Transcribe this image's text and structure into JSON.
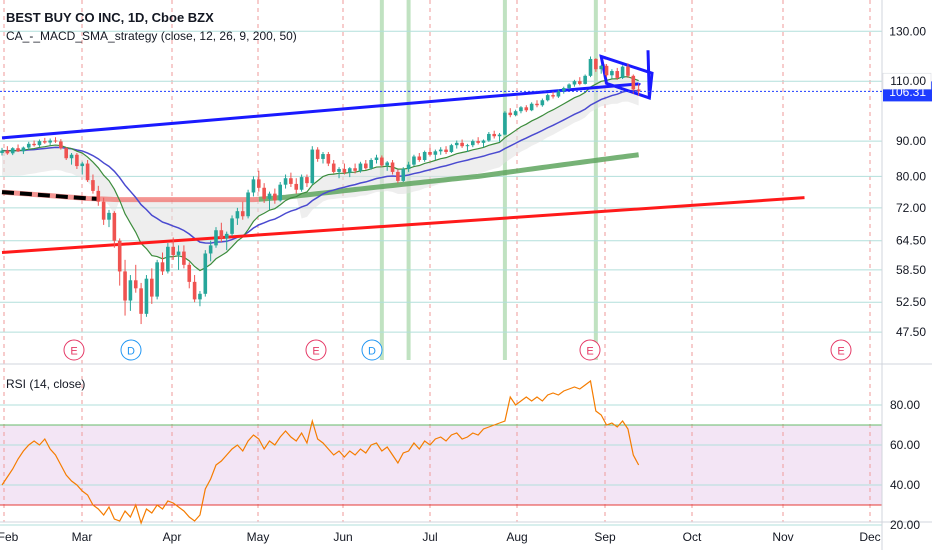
{
  "header": {
    "title": "BEST BUY CO INC, 1D, Cboe BZX",
    "indicator": "CA_-_MACD_SMA_strategy (close, 12, 26, 9, 200, 50)"
  },
  "rsi_header": "RSI (14, close)",
  "colors": {
    "candle_up": "#26a69a",
    "candle_down": "#ef5350",
    "trendline_blue": "#1a1aff",
    "trendline_red": "#ff1a1a",
    "sma200": "#f0716e",
    "sma50_thick": "#5ea55e",
    "ema_fast": "#3c8c3c",
    "ema_blue": "#4a4ad0",
    "rsi_line": "#f57c00",
    "rsi_band": "#f3e5f5",
    "signal_green": "#a5d6a7",
    "event_red": "#e53966",
    "event_blue": "#2196f3",
    "price_badge": "#1e3cff"
  },
  "chart_data": [
    {
      "type": "candlestick",
      "title": "BEST BUY CO INC, 1D, Cboe BZX",
      "price_axis": {
        "ticks": [
          "130.00",
          "110.00",
          "90.00",
          "80.00",
          "72.00",
          "64.50",
          "58.50",
          "52.50",
          "47.50"
        ],
        "scale": "log",
        "ylim": [
          44,
          135
        ]
      },
      "time_axis": {
        "ticks": [
          "Feb",
          "Mar",
          "Apr",
          "May",
          "Jun",
          "Jul",
          "Aug",
          "Sep",
          "Oct",
          "Nov",
          "Dec"
        ]
      },
      "last_price": "106.31",
      "event_markers": [
        "E",
        "D",
        "E",
        "D",
        "E",
        "E"
      ],
      "ohlc": [
        [
          86.5,
          88,
          85.8,
          87.2
        ],
        [
          87.2,
          88.5,
          86,
          86.4
        ],
        [
          86.4,
          88.2,
          85.9,
          87.9
        ],
        [
          87.9,
          89,
          86.8,
          87
        ],
        [
          87,
          88.4,
          86.2,
          88.1
        ],
        [
          88.1,
          89.8,
          87.5,
          89.2
        ],
        [
          89.2,
          90.2,
          88.4,
          88.8
        ],
        [
          88.8,
          90.5,
          88.3,
          90
        ],
        [
          90,
          91,
          89.2,
          89.6
        ],
        [
          89.6,
          90.8,
          88.8,
          90.2
        ],
        [
          90.2,
          91.2,
          89.5,
          89.9
        ],
        [
          89.9,
          90.6,
          87.5,
          87.9
        ],
        [
          87.9,
          88.2,
          84.5,
          85
        ],
        [
          85,
          86.5,
          83.2,
          86
        ],
        [
          86,
          86.5,
          82,
          82.8
        ],
        [
          82.8,
          84,
          80.5,
          83.5
        ],
        [
          83.5,
          84.5,
          78.5,
          79
        ],
        [
          79,
          80.5,
          75.5,
          76.2
        ],
        [
          76.2,
          77.5,
          72.5,
          73.5
        ],
        [
          73.5,
          74.5,
          68,
          69.2
        ],
        [
          69.2,
          71.5,
          67.5,
          70.8
        ],
        [
          70.8,
          71.2,
          63,
          64.5
        ],
        [
          64.5,
          65,
          55.5,
          58.2
        ],
        [
          58.2,
          60.5,
          50.2,
          52.8
        ],
        [
          52.8,
          57.5,
          51,
          56.5
        ],
        [
          56.5,
          59.5,
          54.2,
          55
        ],
        [
          55,
          56,
          48.8,
          50.5
        ],
        [
          50.5,
          57.5,
          50,
          56.8
        ],
        [
          56.8,
          58.8,
          52.2,
          53.5
        ],
        [
          53.5,
          60.5,
          53,
          60
        ],
        [
          60,
          62,
          57.5,
          58.2
        ],
        [
          58.2,
          64,
          57.8,
          63.2
        ],
        [
          63.2,
          65.2,
          60.5,
          61.5
        ],
        [
          61.5,
          63.5,
          58.5,
          62.2
        ],
        [
          62.2,
          63.5,
          58.8,
          59.5
        ],
        [
          59.5,
          60,
          55,
          56.2
        ],
        [
          56.2,
          57.5,
          52.5,
          53
        ],
        [
          53,
          54.5,
          51.8,
          54
        ],
        [
          54,
          62.5,
          53.5,
          61.8
        ],
        [
          61.8,
          64.5,
          60.2,
          63.5
        ],
        [
          63.5,
          67.5,
          63,
          66.8
        ],
        [
          66.8,
          68.5,
          64.2,
          65
        ],
        [
          65,
          66.5,
          62.5,
          66
        ],
        [
          66,
          70.2,
          65.5,
          69.5
        ],
        [
          69.5,
          72,
          68,
          71.2
        ],
        [
          71.2,
          73.5,
          69.2,
          70
        ],
        [
          70,
          76.5,
          69.5,
          75.8
        ],
        [
          75.8,
          80,
          74.8,
          79.2
        ],
        [
          79.2,
          81.5,
          76,
          77
        ],
        [
          77,
          78.2,
          73.2,
          74.2
        ],
        [
          74.2,
          76,
          71.5,
          75.5
        ],
        [
          75.5,
          76.8,
          73,
          73.8
        ],
        [
          73.8,
          78.5,
          73.5,
          77.8
        ],
        [
          77.8,
          80.5,
          76.8,
          79.5
        ],
        [
          79.5,
          81,
          77.2,
          78
        ],
        [
          78,
          79.5,
          75.5,
          76.5
        ],
        [
          76.5,
          80.5,
          76,
          79.8
        ],
        [
          79.8,
          80.5,
          77.2,
          78.2
        ],
        [
          78.2,
          88.5,
          77.8,
          87.5
        ],
        [
          87.5,
          88.2,
          84,
          84.8
        ],
        [
          84.8,
          86.8,
          83.5,
          86.2
        ],
        [
          86.2,
          86.8,
          82.8,
          83.5
        ],
        [
          83.5,
          84.5,
          80.8,
          81.2
        ],
        [
          81.2,
          82.5,
          79.5,
          82
        ],
        [
          82,
          83.5,
          80.5,
          81
        ],
        [
          81,
          82.5,
          79.8,
          82.2
        ],
        [
          82.2,
          83.5,
          80.8,
          81.5
        ],
        [
          81.5,
          84,
          81,
          83.5
        ],
        [
          83.5,
          84.5,
          81.8,
          82.2
        ],
        [
          82.2,
          85,
          81.8,
          84.5
        ],
        [
          84.5,
          86,
          83.5,
          85.2
        ],
        [
          85.2,
          85.8,
          82.5,
          83
        ],
        [
          83,
          84.2,
          81.5,
          83.8
        ],
        [
          83.8,
          84.5,
          80.5,
          81.2
        ],
        [
          81.2,
          81.8,
          78.2,
          78.8
        ],
        [
          78.8,
          82.5,
          78.5,
          82
        ],
        [
          82,
          84,
          81.2,
          83.2
        ],
        [
          83.2,
          86,
          82.8,
          85.5
        ],
        [
          85.5,
          86.5,
          84,
          84.5
        ],
        [
          84.5,
          87.2,
          84,
          86.8
        ],
        [
          86.8,
          88,
          85.5,
          86
        ],
        [
          86,
          87.5,
          84.5,
          87
        ],
        [
          87,
          88.2,
          86,
          87.5
        ],
        [
          87.5,
          88.5,
          86.2,
          86.8
        ],
        [
          86.8,
          89.2,
          86.5,
          88.8
        ],
        [
          88.8,
          90.2,
          87.8,
          89.5
        ],
        [
          89.5,
          90.5,
          88,
          88.5
        ],
        [
          88.5,
          89.2,
          86.8,
          88.8
        ],
        [
          88.8,
          90.5,
          88.2,
          90
        ],
        [
          90,
          91.2,
          89,
          89.5
        ],
        [
          89.5,
          90.5,
          88.2,
          90.2
        ],
        [
          90.2,
          92.8,
          89.8,
          92.2
        ],
        [
          92.2,
          93.2,
          90.8,
          91.5
        ],
        [
          91.5,
          92.5,
          89.8,
          92
        ],
        [
          92,
          99.5,
          91.8,
          99
        ],
        [
          99,
          100.5,
          97.5,
          98.2
        ],
        [
          98.2,
          100,
          97.8,
          99.5
        ],
        [
          99.5,
          101.2,
          98.8,
          100.8
        ],
        [
          100.8,
          101.5,
          99.2,
          99.8
        ],
        [
          99.8,
          102.5,
          99.5,
          102
        ],
        [
          102,
          103.2,
          100.8,
          101.5
        ],
        [
          101.5,
          103.8,
          101,
          103.2
        ],
        [
          103.2,
          105.5,
          102.8,
          105
        ],
        [
          105,
          106.2,
          103.8,
          104.5
        ],
        [
          104.5,
          107,
          104,
          106.5
        ],
        [
          106.5,
          108,
          105.5,
          107.5
        ],
        [
          107.5,
          109.2,
          107,
          108.8
        ],
        [
          108.8,
          110.5,
          108,
          110
        ],
        [
          110,
          111.5,
          108.5,
          109
        ],
        [
          109,
          112.5,
          108.8,
          112
        ],
        [
          112,
          119.5,
          111.5,
          118.5
        ],
        [
          118.5,
          118.8,
          113.5,
          114.5
        ],
        [
          114.5,
          116.2,
          112.8,
          115.8
        ],
        [
          115.8,
          116.5,
          111.5,
          112.2
        ],
        [
          112.2,
          114.5,
          111,
          113.8
        ],
        [
          113.8,
          115,
          110.5,
          111.2
        ],
        [
          111.2,
          116,
          110.8,
          115.5
        ],
        [
          115.5,
          116.8,
          111.2,
          112
        ],
        [
          112,
          112.5,
          105.5,
          107
        ],
        [
          107,
          109,
          104.8,
          106.31
        ]
      ],
      "sma200": [
        75.9,
        75.8,
        75.7,
        75.6,
        75.5,
        75.4,
        75.3,
        75.2,
        75.1,
        75,
        74.9,
        74.8,
        74.7,
        74.6,
        74.5,
        74.4,
        74.3,
        74.25,
        74.2,
        74.15,
        74.1,
        74.05,
        74,
        74,
        74,
        74,
        74,
        74,
        74,
        74,
        74,
        74,
        74,
        74,
        74,
        74,
        74,
        74,
        74,
        74,
        74,
        74,
        74,
        74,
        74,
        74,
        74,
        74,
        74.1,
        74.2,
        74.3,
        74.4,
        74.5,
        74.6,
        74.75,
        74.9,
        75.05,
        75.2,
        75.35,
        75.5,
        75.65,
        75.8,
        75.95,
        76.1,
        76.25,
        76.4,
        76.55,
        76.7,
        76.85,
        77,
        77.15,
        77.3,
        77.45,
        77.6,
        77.75,
        77.9,
        78.05,
        78.2,
        78.35,
        78.5,
        78.65,
        78.8,
        78.95,
        79.1,
        79.25,
        79.4,
        79.55,
        79.7,
        79.85,
        80,
        80.2,
        80.4,
        80.6,
        80.8,
        81,
        81.2,
        81.4,
        81.6,
        81.8,
        82,
        82.2,
        82.4,
        82.6,
        82.8,
        83,
        83.2,
        83.4,
        83.6,
        83.8,
        84,
        84.2,
        84.4,
        84.6,
        84.8,
        85,
        85.2,
        85.4,
        85.6,
        85.8,
        86
      ],
      "trendlines": [
        {
          "color": "blue",
          "from": [
            0,
            91
          ],
          "to": [
            119,
            109
          ]
        },
        {
          "color": "red",
          "from": [
            0,
            62
          ],
          "to": [
            150,
            74.5
          ]
        }
      ]
    },
    {
      "type": "line",
      "title": "RSI (14, close)",
      "y_ticks": [
        "80.00",
        "60.00",
        "40.00",
        "20.00"
      ],
      "ylim": [
        15,
        95
      ],
      "bands": {
        "upper": 70,
        "lower": 30
      },
      "values": [
        40,
        44,
        48,
        53,
        57,
        60,
        62,
        60,
        63,
        58,
        55,
        50,
        45,
        42,
        40,
        37,
        35,
        30,
        28,
        25,
        29,
        23,
        22,
        27,
        24,
        30,
        21,
        28,
        26,
        30,
        28,
        32,
        31,
        29,
        27,
        24,
        22,
        25,
        38,
        43,
        50,
        52,
        55,
        58,
        60,
        57,
        62,
        65,
        63,
        58,
        62,
        60,
        64,
        67,
        64,
        62,
        66,
        61,
        72,
        63,
        61,
        58,
        55,
        57,
        54,
        57,
        55,
        58,
        56,
        60,
        61,
        57,
        59,
        55,
        51,
        56,
        57,
        61,
        58,
        62,
        60,
        63,
        64,
        62,
        65,
        66,
        63,
        64,
        66,
        65,
        68,
        69,
        70,
        71,
        72,
        84,
        80,
        82,
        84,
        82,
        84,
        82,
        85,
        86,
        85,
        87,
        88,
        89,
        88,
        90,
        92,
        77,
        75,
        70,
        71,
        69,
        72,
        68,
        55,
        50
      ]
    }
  ]
}
